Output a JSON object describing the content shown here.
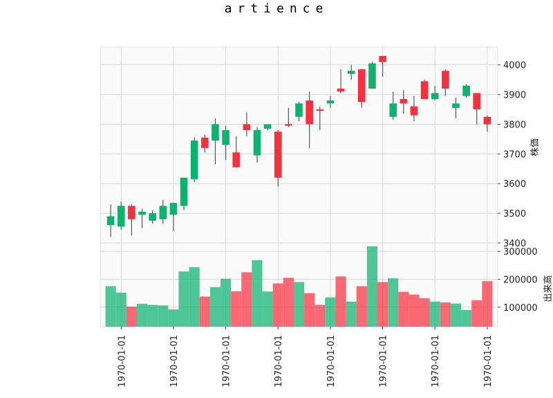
{
  "chart_data": {
    "type": "candlestick",
    "title": "artience",
    "price_axis_label": "株価",
    "volume_axis_label": "出来高",
    "price_ylim": [
      3400,
      4060
    ],
    "price_ticks": [
      "3400",
      "3500",
      "3600",
      "3700",
      "3800",
      "3900",
      "4000"
    ],
    "volume_ylim": [
      30000,
      320000
    ],
    "volume_ticks": [
      "100000",
      "200000",
      "300000"
    ],
    "x_tick_labels": [
      "1970-01-01",
      "1970-01-01",
      "1970-01-01",
      "1970-01-01",
      "1970-01-01",
      "1970-01-01",
      "1970-01-01",
      "1970-01-01"
    ],
    "x_tick_indices": [
      1,
      6,
      11,
      16,
      21,
      26,
      31,
      36
    ],
    "up_color": "#0db26e",
    "down_color": "#f7303e",
    "grid": true,
    "candles": [
      {
        "o": 3460,
        "h": 3530,
        "l": 3420,
        "c": 3490,
        "v": 175000
      },
      {
        "o": 3455,
        "h": 3540,
        "l": 3445,
        "c": 3525,
        "v": 152000
      },
      {
        "o": 3525,
        "h": 3530,
        "l": 3425,
        "c": 3480,
        "v": 102000
      },
      {
        "o": 3495,
        "h": 3515,
        "l": 3450,
        "c": 3505,
        "v": 112000
      },
      {
        "o": 3475,
        "h": 3510,
        "l": 3465,
        "c": 3500,
        "v": 108000
      },
      {
        "o": 3480,
        "h": 3545,
        "l": 3465,
        "c": 3525,
        "v": 106000
      },
      {
        "o": 3495,
        "h": 3535,
        "l": 3440,
        "c": 3535,
        "v": 92000
      },
      {
        "o": 3525,
        "h": 3620,
        "l": 3510,
        "c": 3620,
        "v": 228000
      },
      {
        "o": 3615,
        "h": 3755,
        "l": 3605,
        "c": 3745,
        "v": 243000
      },
      {
        "o": 3755,
        "h": 3765,
        "l": 3705,
        "c": 3720,
        "v": 138000
      },
      {
        "o": 3745,
        "h": 3820,
        "l": 3665,
        "c": 3800,
        "v": 172000
      },
      {
        "o": 3730,
        "h": 3795,
        "l": 3680,
        "c": 3780,
        "v": 202000
      },
      {
        "o": 3705,
        "h": 3760,
        "l": 3655,
        "c": 3655,
        "v": 157000
      },
      {
        "o": 3800,
        "h": 3840,
        "l": 3760,
        "c": 3780,
        "v": 225000
      },
      {
        "o": 3695,
        "h": 3790,
        "l": 3670,
        "c": 3780,
        "v": 268000
      },
      {
        "o": 3785,
        "h": 3800,
        "l": 3780,
        "c": 3800,
        "v": 156000
      },
      {
        "o": 3775,
        "h": 3780,
        "l": 3590,
        "c": 3620,
        "v": 185000
      },
      {
        "o": 3800,
        "h": 3855,
        "l": 3790,
        "c": 3795,
        "v": 205000
      },
      {
        "o": 3825,
        "h": 3875,
        "l": 3810,
        "c": 3870,
        "v": 190000
      },
      {
        "o": 3880,
        "h": 3910,
        "l": 3720,
        "c": 3800,
        "v": 150000
      },
      {
        "o": 3850,
        "h": 3860,
        "l": 3780,
        "c": 3845,
        "v": 108000
      },
      {
        "o": 3870,
        "h": 3895,
        "l": 3855,
        "c": 3880,
        "v": 135000
      },
      {
        "o": 3920,
        "h": 3985,
        "l": 3905,
        "c": 3910,
        "v": 210000
      },
      {
        "o": 3970,
        "h": 4000,
        "l": 3950,
        "c": 3980,
        "v": 120000
      },
      {
        "o": 3985,
        "h": 3985,
        "l": 3855,
        "c": 3875,
        "v": 175000
      },
      {
        "o": 3920,
        "h": 4010,
        "l": 3920,
        "c": 4005,
        "v": 318000
      },
      {
        "o": 4030,
        "h": 4030,
        "l": 3960,
        "c": 4010,
        "v": 190000
      },
      {
        "o": 3825,
        "h": 3910,
        "l": 3815,
        "c": 3870,
        "v": 203000
      },
      {
        "o": 3885,
        "h": 3915,
        "l": 3835,
        "c": 3870,
        "v": 155000
      },
      {
        "o": 3860,
        "h": 3895,
        "l": 3810,
        "c": 3830,
        "v": 145000
      },
      {
        "o": 3945,
        "h": 3950,
        "l": 3885,
        "c": 3885,
        "v": 132000
      },
      {
        "o": 3885,
        "h": 3930,
        "l": 3880,
        "c": 3905,
        "v": 120000
      },
      {
        "o": 3980,
        "h": 3985,
        "l": 3895,
        "c": 3920,
        "v": 117000
      },
      {
        "o": 3855,
        "h": 3890,
        "l": 3820,
        "c": 3870,
        "v": 113000
      },
      {
        "o": 3895,
        "h": 3935,
        "l": 3890,
        "c": 3930,
        "v": 90000
      },
      {
        "o": 3905,
        "h": 3905,
        "l": 3800,
        "c": 3850,
        "v": 125000
      },
      {
        "o": 3825,
        "h": 3830,
        "l": 3775,
        "c": 3800,
        "v": 193000
      }
    ]
  }
}
